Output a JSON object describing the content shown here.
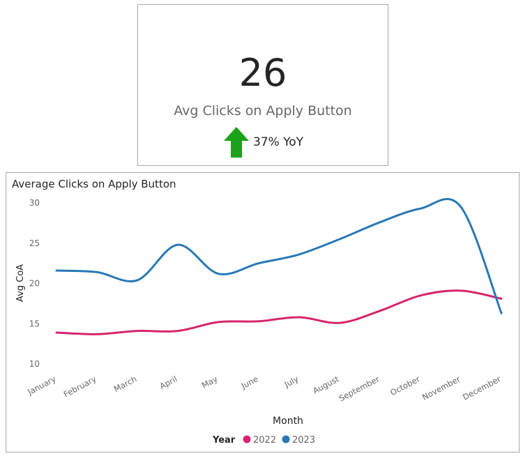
{
  "kpi": {
    "value": "26",
    "label": "Avg Clicks on Apply Button",
    "trend_text": "37% YoY",
    "trend_direction": "up",
    "trend_color": "#1aa31a"
  },
  "chart_data": {
    "type": "line",
    "title": "Average Clicks on Apply Button",
    "xlabel": "Month",
    "ylabel": "Avg CoA",
    "categories": [
      "January",
      "February",
      "March",
      "April",
      "May",
      "June",
      "July",
      "August",
      "September",
      "October",
      "November",
      "December"
    ],
    "yticks": [
      10,
      15,
      20,
      25,
      30
    ],
    "ylim": [
      10,
      30
    ],
    "grid": false,
    "legend": {
      "title": "Year",
      "placement": "bottom"
    },
    "series": [
      {
        "name": "2022",
        "color": "#d6246e",
        "values": [
          13.9,
          13.7,
          14.1,
          14.1,
          15.2,
          15.3,
          15.8,
          15.1,
          16.6,
          18.5,
          19.1,
          18.1
        ]
      },
      {
        "name": "2023",
        "color": "#2878b5",
        "values": [
          21.6,
          21.4,
          20.4,
          24.8,
          21.2,
          22.5,
          23.6,
          25.5,
          27.6,
          29.3,
          29.5,
          16.3
        ]
      }
    ]
  }
}
